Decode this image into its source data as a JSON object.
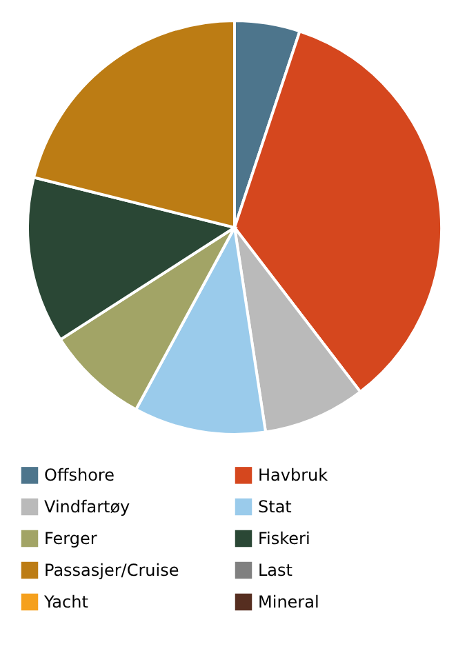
{
  "chart_data": {
    "type": "pie",
    "categories": [
      "Offshore",
      "Havbruk",
      "Vindfartøy",
      "Stat",
      "Ferger",
      "Fiskeri",
      "Passasjer/Cruise",
      "Last",
      "Yacht",
      "Mineral"
    ],
    "values": [
      5.1,
      34.5,
      8.0,
      10.3,
      8.0,
      13.0,
      21.1,
      0,
      0,
      0
    ],
    "colors": [
      "#4d758c",
      "#d5471e",
      "#bababa",
      "#9acbeb",
      "#a2a466",
      "#2a4735",
      "#bc7c14",
      "#808080",
      "#f5a01d",
      "#562e20"
    ],
    "legend": "bottom"
  }
}
